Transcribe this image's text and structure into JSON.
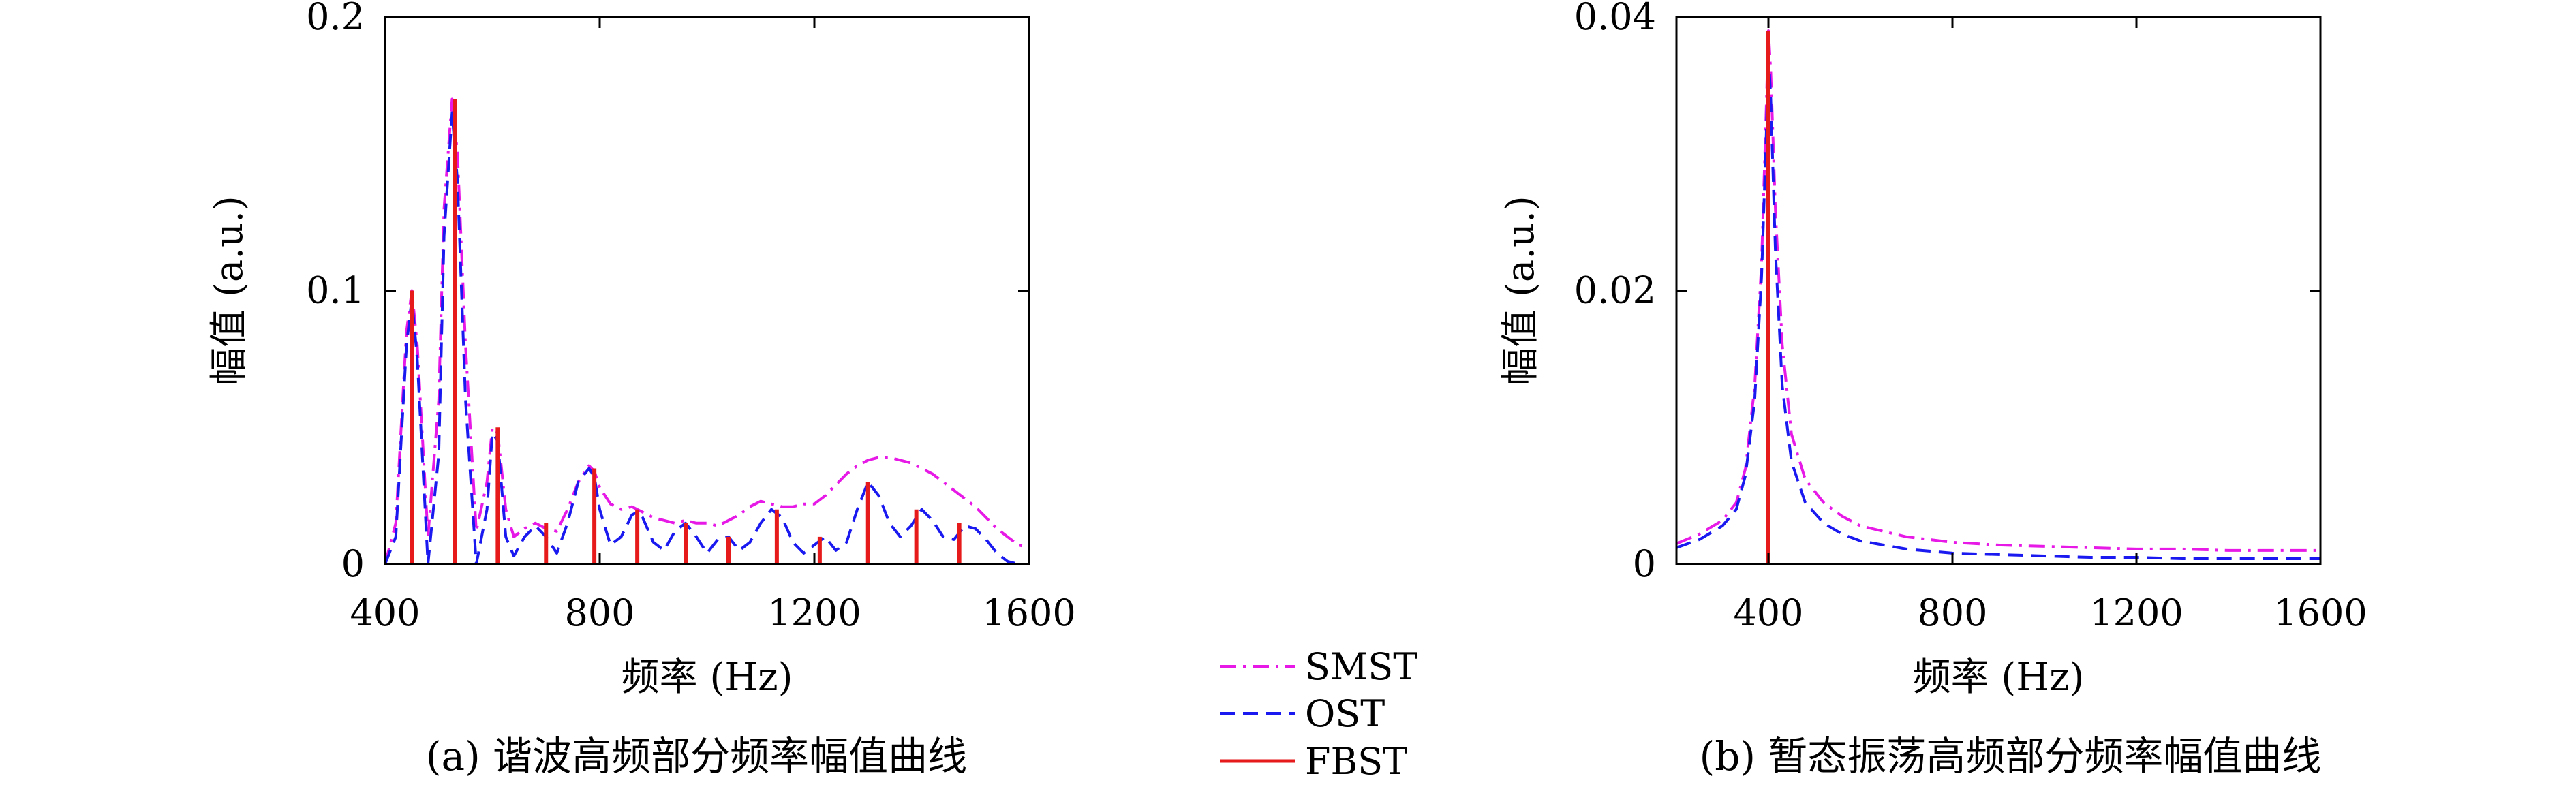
{
  "legend": [
    {
      "name": "SMST",
      "color": "#e619e6",
      "dash": "dashdot"
    },
    {
      "name": "OST",
      "color": "#1a1af0",
      "dash": "dash"
    },
    {
      "name": "FBST",
      "color": "#e61a1a",
      "dash": "solid"
    }
  ],
  "chart_data": [
    {
      "type": "line",
      "caption": "(a) 谐波高频部分频率幅值曲线",
      "xlabel": "频率 (Hz)",
      "ylabel": "幅值 (a.u.)",
      "xlim": [
        400,
        1600
      ],
      "ylim": [
        0,
        0.2
      ],
      "xticks": [
        400,
        800,
        1200,
        1600
      ],
      "yticks": [
        0,
        0.1,
        0.2
      ],
      "ytick_labels": [
        "0",
        "0.1",
        "0.2"
      ],
      "grid": false,
      "series": [
        {
          "name": "SMST",
          "x": [
            400,
            420,
            440,
            450,
            460,
            480,
            500,
            510,
            525,
            535,
            550,
            570,
            590,
            600,
            610,
            625,
            640,
            660,
            680,
            700,
            720,
            740,
            760,
            780,
            790,
            800,
            820,
            840,
            860,
            870,
            880,
            900,
            920,
            940,
            960,
            980,
            1000,
            1020,
            1040,
            1060,
            1080,
            1100,
            1120,
            1140,
            1160,
            1180,
            1200,
            1220,
            1240,
            1260,
            1280,
            1300,
            1320,
            1340,
            1360,
            1380,
            1400,
            1420,
            1440,
            1460,
            1480,
            1500,
            1520,
            1540,
            1560,
            1580,
            1600
          ],
          "y": [
            0.0,
            0.015,
            0.085,
            0.1,
            0.08,
            0.01,
            0.06,
            0.13,
            0.17,
            0.15,
            0.08,
            0.012,
            0.03,
            0.05,
            0.048,
            0.02,
            0.01,
            0.013,
            0.015,
            0.013,
            0.012,
            0.02,
            0.03,
            0.036,
            0.034,
            0.028,
            0.022,
            0.02,
            0.021,
            0.02,
            0.019,
            0.017,
            0.016,
            0.015,
            0.016,
            0.015,
            0.015,
            0.014,
            0.016,
            0.018,
            0.021,
            0.023,
            0.022,
            0.021,
            0.021,
            0.022,
            0.022,
            0.025,
            0.029,
            0.033,
            0.036,
            0.038,
            0.039,
            0.039,
            0.038,
            0.037,
            0.035,
            0.033,
            0.03,
            0.027,
            0.024,
            0.021,
            0.017,
            0.013,
            0.01,
            0.007,
            0.006
          ]
        },
        {
          "name": "OST",
          "x": [
            400,
            420,
            440,
            450,
            460,
            480,
            500,
            510,
            525,
            535,
            550,
            570,
            590,
            600,
            610,
            625,
            640,
            660,
            680,
            700,
            720,
            740,
            760,
            780,
            790,
            800,
            820,
            840,
            860,
            870,
            880,
            900,
            920,
            940,
            960,
            980,
            1000,
            1020,
            1040,
            1060,
            1080,
            1100,
            1120,
            1140,
            1160,
            1180,
            1200,
            1220,
            1240,
            1260,
            1280,
            1300,
            1320,
            1340,
            1360,
            1380,
            1400,
            1420,
            1440,
            1460,
            1480,
            1500,
            1520,
            1540,
            1560,
            1580,
            1600
          ],
          "y": [
            0.0,
            0.01,
            0.08,
            0.097,
            0.075,
            0.0,
            0.04,
            0.12,
            0.165,
            0.14,
            0.06,
            0.0,
            0.02,
            0.048,
            0.045,
            0.01,
            0.003,
            0.01,
            0.014,
            0.01,
            0.004,
            0.015,
            0.03,
            0.035,
            0.032,
            0.02,
            0.007,
            0.01,
            0.018,
            0.019,
            0.017,
            0.008,
            0.005,
            0.012,
            0.015,
            0.01,
            0.004,
            0.009,
            0.01,
            0.005,
            0.008,
            0.015,
            0.02,
            0.017,
            0.008,
            0.004,
            0.007,
            0.01,
            0.005,
            0.008,
            0.02,
            0.03,
            0.025,
            0.015,
            0.01,
            0.014,
            0.02,
            0.016,
            0.01,
            0.009,
            0.014,
            0.013,
            0.009,
            0.004,
            0.001,
            0.0,
            0.0
          ]
        },
        {
          "name": "FBST",
          "type": "stem",
          "x": [
            450,
            530,
            610,
            700,
            790,
            870,
            960,
            1040,
            1130,
            1210,
            1300,
            1390,
            1470
          ],
          "y": [
            0.1,
            0.17,
            0.05,
            0.015,
            0.035,
            0.02,
            0.015,
            0.01,
            0.02,
            0.01,
            0.03,
            0.02,
            0.015
          ]
        }
      ]
    },
    {
      "type": "line",
      "caption": "(b) 暂态振荡高频部分频率幅值曲线",
      "xlabel": "频率 (Hz)",
      "ylabel": "幅值 (a.u.)",
      "xlim": [
        200,
        1600
      ],
      "ylim": [
        0,
        0.04
      ],
      "xticks": [
        400,
        800,
        1200,
        1600
      ],
      "yticks": [
        0,
        0.02,
        0.04
      ],
      "ytick_labels": [
        "0",
        "0.02",
        "0.04"
      ],
      "grid": false,
      "series": [
        {
          "name": "SMST",
          "x": [
            200,
            250,
            300,
            330,
            350,
            370,
            385,
            395,
            400,
            405,
            415,
            430,
            450,
            480,
            520,
            560,
            600,
            700,
            800,
            900,
            1000,
            1100,
            1200,
            1300,
            1400,
            1500,
            1600
          ],
          "y": [
            0.0015,
            0.0022,
            0.0032,
            0.0045,
            0.007,
            0.013,
            0.022,
            0.033,
            0.039,
            0.036,
            0.026,
            0.016,
            0.0095,
            0.0062,
            0.0045,
            0.0035,
            0.0028,
            0.002,
            0.0016,
            0.0014,
            0.0013,
            0.0012,
            0.0011,
            0.0011,
            0.001,
            0.001,
            0.001
          ]
        },
        {
          "name": "OST",
          "x": [
            200,
            250,
            300,
            330,
            350,
            370,
            385,
            395,
            400,
            405,
            415,
            430,
            450,
            480,
            520,
            560,
            600,
            700,
            800,
            900,
            1000,
            1100,
            1200,
            1300,
            1400,
            1500,
            1600
          ],
          "y": [
            0.0012,
            0.0018,
            0.0028,
            0.004,
            0.0065,
            0.012,
            0.021,
            0.031,
            0.0375,
            0.034,
            0.023,
            0.013,
            0.0075,
            0.0045,
            0.003,
            0.0022,
            0.0017,
            0.0011,
            0.0008,
            0.0007,
            0.0006,
            0.0005,
            0.0005,
            0.0004,
            0.0004,
            0.0004,
            0.0004
          ]
        },
        {
          "name": "FBST",
          "type": "stem",
          "x": [
            400
          ],
          "y": [
            0.039
          ]
        }
      ]
    }
  ]
}
